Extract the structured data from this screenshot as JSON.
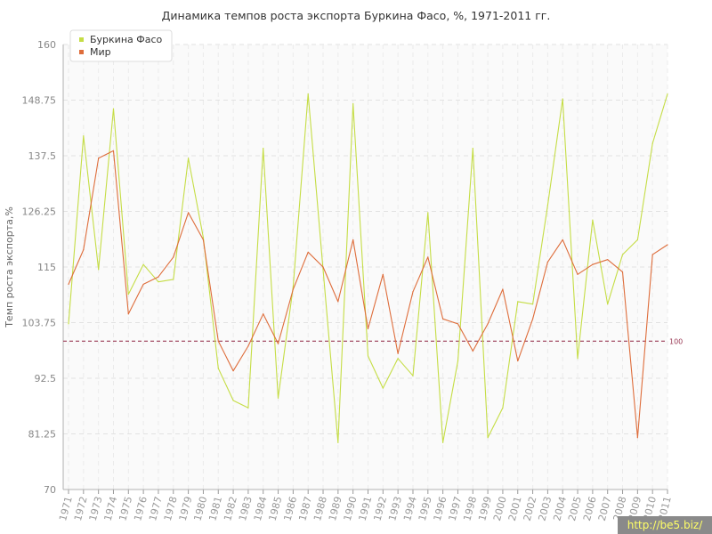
{
  "chart_data": {
    "type": "line",
    "title": "Динамика темпов роста экспорта Буркина Фасо, %, 1971-2011 гг.",
    "xlabel": "",
    "ylabel": "Темп роста экспорта,%",
    "ylim": [
      70,
      160
    ],
    "yticks": [
      "70",
      "81.25",
      "92.5",
      "103.75",
      "115",
      "126.25",
      "137.5",
      "148.75",
      "160"
    ],
    "x": [
      "1971",
      "1972",
      "1973",
      "1974",
      "1975",
      "1976",
      "1977",
      "1978",
      "1979",
      "1980",
      "1981",
      "1982",
      "1983",
      "1984",
      "1985",
      "1986",
      "1987",
      "1988",
      "1989",
      "1990",
      "1991",
      "1992",
      "1993",
      "1994",
      "1995",
      "1996",
      "1997",
      "1998",
      "1999",
      "2000",
      "2001",
      "2002",
      "2003",
      "2004",
      "2005",
      "2006",
      "2007",
      "2008",
      "2009",
      "2010",
      "2011"
    ],
    "series": [
      {
        "name": "Буркина Фасо",
        "color": "#c5dd45",
        "values": [
          103.5,
          141.5,
          114.5,
          147,
          109.5,
          115.5,
          112,
          112.5,
          137,
          121,
          94.5,
          88,
          86.5,
          139,
          88.5,
          111,
          150,
          114.5,
          79.5,
          148,
          97,
          90.5,
          96.5,
          93,
          126,
          79.5,
          96,
          139,
          80.5,
          86.5,
          108,
          107.5,
          127.5,
          149,
          96.5,
          124.5,
          107.5,
          117.5,
          120.5,
          140,
          150
        ]
      },
      {
        "name": "Мир",
        "color": "#de6d3b",
        "values": [
          111.5,
          118.5,
          137,
          138.5,
          105.5,
          111.5,
          113,
          117,
          126,
          120.5,
          100,
          94,
          99,
          105.5,
          99.5,
          110.5,
          118,
          115,
          108,
          120.5,
          102.5,
          113.5,
          97.5,
          110,
          117,
          104.5,
          103.5,
          98,
          103.5,
          110.5,
          96,
          104.5,
          116,
          120.5,
          113.5,
          115.5,
          116.5,
          114,
          80.5,
          117.5,
          119.5
        ]
      }
    ],
    "reference_line": {
      "value": 100,
      "label": "100",
      "color": "#9a3a55"
    },
    "grid": true,
    "legend": "top-left"
  },
  "watermark": "http://be5.biz/"
}
